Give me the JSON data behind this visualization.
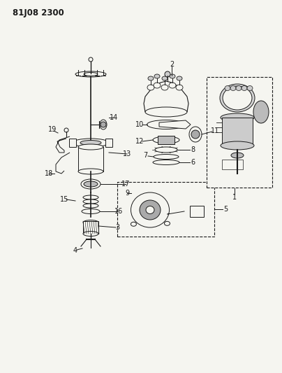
{
  "title": "81J08 2300",
  "bg": "#f5f5f0",
  "lc": "#1a1a1a",
  "fig_w": 4.04,
  "fig_h": 5.33,
  "dpi": 100,
  "fs": 7.0,
  "title_fs": 8.5
}
